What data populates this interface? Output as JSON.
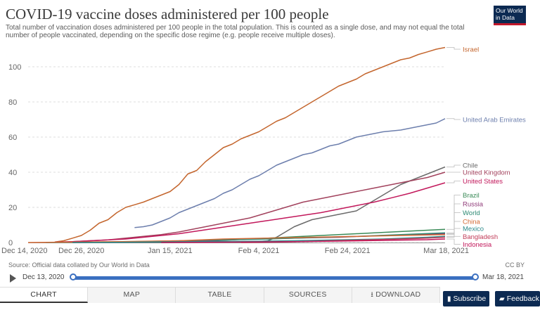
{
  "header": {
    "title": "COVID-19 vaccine doses administered per 100 people",
    "subtitle": "Total number of vaccination doses administered per 100 people in the total population. This is counted as a single dose, and may not equal the total number of people vaccinated, depending on the specific dose regime (e.g. people receive multiple doses).",
    "logo_line1": "Our World",
    "logo_line2": "in Data"
  },
  "footer": {
    "source": "Source: Official data collated by Our World in Data",
    "license": "CC BY"
  },
  "timeline": {
    "start_label": "Dec 13, 2020",
    "end_label": "Mar 18, 2021",
    "start_fraction": 0.0,
    "end_fraction": 1.0
  },
  "tabs": [
    {
      "label": "CHART",
      "active": true
    },
    {
      "label": "MAP",
      "active": false
    },
    {
      "label": "TABLE",
      "active": false
    },
    {
      "label": "SOURCES",
      "active": false
    },
    {
      "label": "DOWNLOAD",
      "active": false
    }
  ],
  "buttons": {
    "subscribe": "Subscribe",
    "feedback": "Feedback"
  },
  "icons": {
    "play": "play-icon",
    "download": "download-icon",
    "subscribe": "bell-icon",
    "feedback": "comment-icon"
  },
  "chart_data": {
    "type": "line",
    "title": "COVID-19 vaccine doses administered per 100 people",
    "xlabel": "",
    "ylabel": "",
    "x_unit": "days since Dec 14, 2020",
    "xlim": [
      0,
      94
    ],
    "ylim": [
      0,
      110
    ],
    "grid": "horizontal-dashed",
    "y_ticks": [
      0,
      20,
      40,
      60,
      80,
      100
    ],
    "x_ticks": [
      {
        "label": "Dec 14, 2020",
        "value": 0
      },
      {
        "label": "Dec 26, 2020",
        "value": 12
      },
      {
        "label": "Jan 15, 2021",
        "value": 32
      },
      {
        "label": "Feb 4, 2021",
        "value": 52
      },
      {
        "label": "Feb 24, 2021",
        "value": 72
      },
      {
        "label": "Mar 18, 2021",
        "value": 94
      }
    ],
    "series": [
      {
        "name": "Israel",
        "color": "#c4662e",
        "label_value": 110,
        "points": [
          [
            6,
            0.3
          ],
          [
            8,
            1
          ],
          [
            10,
            2.5
          ],
          [
            12,
            4
          ],
          [
            14,
            7
          ],
          [
            16,
            11
          ],
          [
            18,
            13
          ],
          [
            20,
            17
          ],
          [
            22,
            20
          ],
          [
            24,
            21.5
          ],
          [
            26,
            23
          ],
          [
            28,
            25
          ],
          [
            30,
            27
          ],
          [
            32,
            29
          ],
          [
            34,
            33
          ],
          [
            36,
            39
          ],
          [
            38,
            41
          ],
          [
            40,
            46
          ],
          [
            42,
            50
          ],
          [
            44,
            54
          ],
          [
            46,
            56
          ],
          [
            48,
            59
          ],
          [
            50,
            61
          ],
          [
            52,
            63
          ],
          [
            54,
            66
          ],
          [
            56,
            69
          ],
          [
            58,
            71
          ],
          [
            60,
            74
          ],
          [
            62,
            77
          ],
          [
            64,
            80
          ],
          [
            66,
            83
          ],
          [
            68,
            86
          ],
          [
            70,
            89
          ],
          [
            72,
            91
          ],
          [
            74,
            93
          ],
          [
            76,
            96
          ],
          [
            78,
            98
          ],
          [
            80,
            100
          ],
          [
            82,
            102
          ],
          [
            84,
            104
          ],
          [
            86,
            105
          ],
          [
            88,
            107
          ],
          [
            90,
            108.5
          ],
          [
            92,
            110
          ],
          [
            94,
            111
          ]
        ]
      },
      {
        "name": "United Arab Emirates",
        "color": "#6d7fad",
        "label_value": 70,
        "points": [
          [
            24,
            8.5
          ],
          [
            26,
            9
          ],
          [
            28,
            10
          ],
          [
            30,
            12
          ],
          [
            32,
            14
          ],
          [
            34,
            17
          ],
          [
            36,
            19
          ],
          [
            38,
            21
          ],
          [
            40,
            23
          ],
          [
            42,
            25
          ],
          [
            44,
            28
          ],
          [
            46,
            30
          ],
          [
            48,
            33
          ],
          [
            50,
            36
          ],
          [
            52,
            38
          ],
          [
            54,
            41
          ],
          [
            56,
            44
          ],
          [
            58,
            46
          ],
          [
            60,
            48
          ],
          [
            62,
            50
          ],
          [
            64,
            51
          ],
          [
            66,
            53
          ],
          [
            68,
            55
          ],
          [
            70,
            56
          ],
          [
            72,
            58
          ],
          [
            74,
            60
          ],
          [
            76,
            61
          ],
          [
            78,
            62
          ],
          [
            80,
            63
          ],
          [
            82,
            63.5
          ],
          [
            84,
            64
          ],
          [
            86,
            65
          ],
          [
            88,
            66
          ],
          [
            90,
            67
          ],
          [
            92,
            68
          ],
          [
            94,
            70.5
          ]
        ]
      },
      {
        "name": "Chile",
        "color": "#6b6b6b",
        "label_value": 44,
        "points": [
          [
            10,
            0
          ],
          [
            30,
            0
          ],
          [
            40,
            0.1
          ],
          [
            48,
            0.2
          ],
          [
            52,
            0.5
          ],
          [
            54,
            1
          ],
          [
            56,
            3
          ],
          [
            58,
            6
          ],
          [
            60,
            9
          ],
          [
            62,
            11
          ],
          [
            64,
            13
          ],
          [
            66,
            14
          ],
          [
            68,
            15
          ],
          [
            70,
            16
          ],
          [
            72,
            17
          ],
          [
            74,
            18
          ],
          [
            76,
            21
          ],
          [
            78,
            24
          ],
          [
            80,
            27
          ],
          [
            82,
            30
          ],
          [
            84,
            33
          ],
          [
            86,
            35
          ],
          [
            88,
            37
          ],
          [
            90,
            39
          ],
          [
            92,
            41
          ],
          [
            94,
            43
          ]
        ]
      },
      {
        "name": "United Kingdom",
        "color": "#a2425d",
        "label_value": 40,
        "points": [
          [
            6,
            0.2
          ],
          [
            10,
            0.5
          ],
          [
            14,
            1
          ],
          [
            18,
            1.5
          ],
          [
            22,
            2.5
          ],
          [
            26,
            3.5
          ],
          [
            30,
            4.5
          ],
          [
            34,
            6
          ],
          [
            38,
            8
          ],
          [
            42,
            10
          ],
          [
            46,
            12
          ],
          [
            50,
            14
          ],
          [
            54,
            17
          ],
          [
            58,
            20
          ],
          [
            62,
            23
          ],
          [
            66,
            25
          ],
          [
            70,
            27
          ],
          [
            74,
            29
          ],
          [
            78,
            31
          ],
          [
            82,
            33
          ],
          [
            86,
            35
          ],
          [
            90,
            37
          ],
          [
            94,
            40
          ]
        ]
      },
      {
        "name": "United States",
        "color": "#c2185b",
        "label_value": 35,
        "points": [
          [
            6,
            0.1
          ],
          [
            10,
            0.5
          ],
          [
            14,
            1
          ],
          [
            18,
            1.5
          ],
          [
            22,
            2
          ],
          [
            26,
            3
          ],
          [
            30,
            4
          ],
          [
            34,
            5
          ],
          [
            38,
            6.5
          ],
          [
            42,
            8
          ],
          [
            46,
            9.5
          ],
          [
            50,
            11
          ],
          [
            54,
            12.5
          ],
          [
            58,
            14
          ],
          [
            62,
            15.5
          ],
          [
            66,
            17
          ],
          [
            70,
            19
          ],
          [
            74,
            21
          ],
          [
            78,
            23
          ],
          [
            82,
            25.5
          ],
          [
            86,
            28
          ],
          [
            90,
            31
          ],
          [
            94,
            34
          ]
        ]
      },
      {
        "name": "Brazil",
        "color": "#3a8a57",
        "label_value": 27,
        "points": [
          [
            30,
            0
          ],
          [
            34,
            0.2
          ],
          [
            38,
            0.5
          ],
          [
            42,
            1
          ],
          [
            46,
            1.5
          ],
          [
            50,
            2
          ],
          [
            54,
            2.5
          ],
          [
            58,
            3
          ],
          [
            62,
            3.5
          ],
          [
            66,
            4
          ],
          [
            70,
            4.5
          ],
          [
            74,
            5
          ],
          [
            78,
            5.5
          ],
          [
            82,
            6
          ],
          [
            86,
            6.5
          ],
          [
            90,
            7
          ],
          [
            94,
            7.5
          ]
        ]
      },
      {
        "name": "Russia",
        "color": "#8f3a78",
        "label_value": 22,
        "points": [
          [
            10,
            0
          ],
          [
            20,
            0.2
          ],
          [
            30,
            0.5
          ],
          [
            40,
            1
          ],
          [
            50,
            2
          ],
          [
            60,
            2.5
          ],
          [
            70,
            3
          ],
          [
            80,
            4
          ],
          [
            94,
            5
          ]
        ]
      },
      {
        "name": "World",
        "color": "#2e8a74",
        "label_value": 17,
        "points": [
          [
            4,
            0
          ],
          [
            14,
            0.2
          ],
          [
            24,
            0.5
          ],
          [
            34,
            1
          ],
          [
            44,
            1.5
          ],
          [
            54,
            2
          ],
          [
            64,
            2.8
          ],
          [
            74,
            3.5
          ],
          [
            84,
            4.5
          ],
          [
            94,
            5.5
          ]
        ]
      },
      {
        "name": "China",
        "color": "#d46a35",
        "label_value": 12,
        "points": [
          [
            0,
            0
          ],
          [
            20,
            0.5
          ],
          [
            34,
            1
          ],
          [
            44,
            2
          ],
          [
            54,
            2.5
          ],
          [
            64,
            3
          ],
          [
            74,
            3.5
          ],
          [
            84,
            4
          ],
          [
            94,
            4.5
          ]
        ]
      },
      {
        "name": "Mexico",
        "color": "#2e8a8a",
        "label_value": 8,
        "points": [
          [
            10,
            0
          ],
          [
            20,
            0.1
          ],
          [
            30,
            0.4
          ],
          [
            40,
            0.5
          ],
          [
            50,
            0.7
          ],
          [
            60,
            1
          ],
          [
            70,
            1.5
          ],
          [
            80,
            2
          ],
          [
            90,
            3
          ],
          [
            94,
            3.5
          ]
        ]
      },
      {
        "name": "Bangladesh",
        "color": "#c23e5a",
        "label_value": 3.5,
        "points": [
          [
            48,
            0
          ],
          [
            54,
            0.2
          ],
          [
            60,
            0.4
          ],
          [
            66,
            0.8
          ],
          [
            72,
            1.2
          ],
          [
            78,
            1.6
          ],
          [
            84,
            2
          ],
          [
            90,
            2.5
          ],
          [
            94,
            3
          ]
        ]
      },
      {
        "name": "Indonesia",
        "color": "#c2185b",
        "label_value": -1,
        "points": [
          [
            30,
            0
          ],
          [
            40,
            0.1
          ],
          [
            50,
            0.3
          ],
          [
            60,
            0.5
          ],
          [
            70,
            0.8
          ],
          [
            80,
            1.2
          ],
          [
            90,
            1.6
          ],
          [
            94,
            2
          ]
        ]
      }
    ]
  }
}
